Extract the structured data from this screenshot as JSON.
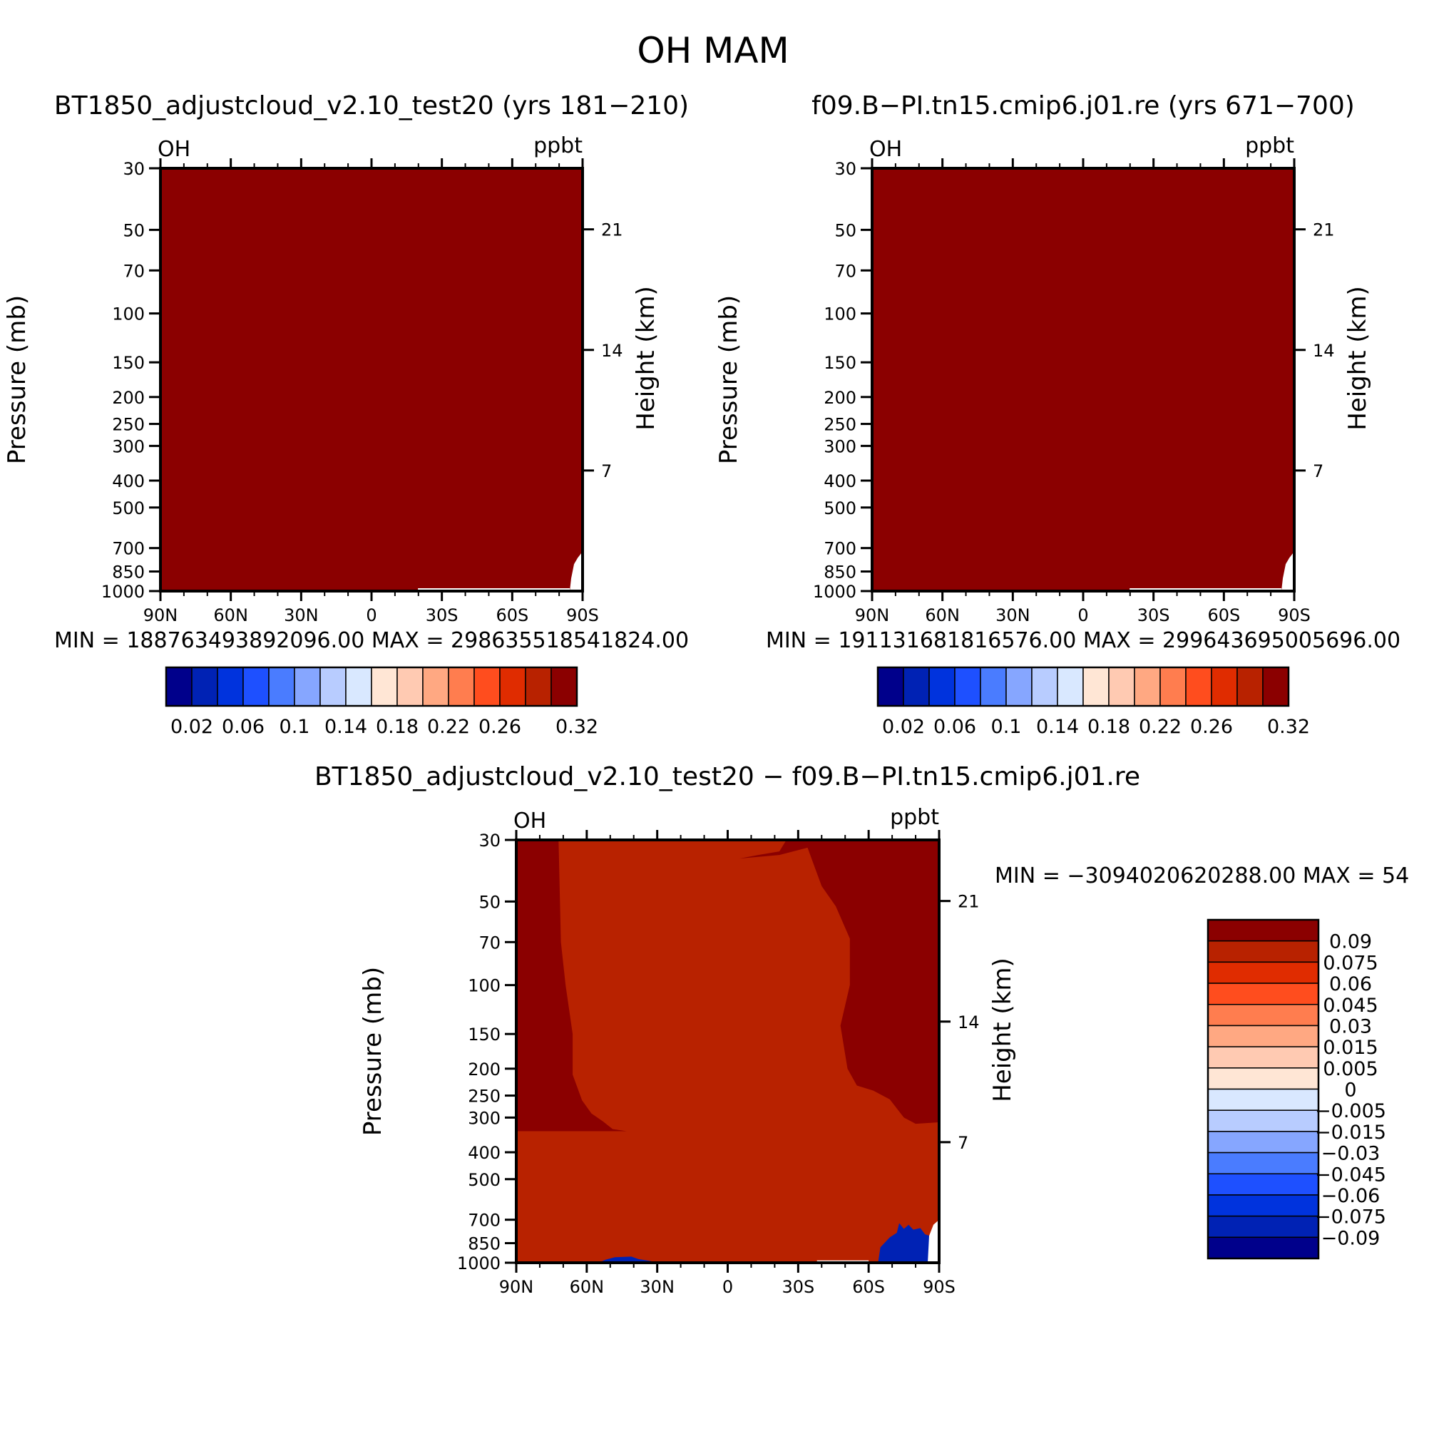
{
  "title": "OH  MAM",
  "colors": {
    "field_fill": "#8b0000",
    "diff_main": "#b82200",
    "diff_high": "#8b0000",
    "diff_neg": "#0022b4",
    "axis": "#000000"
  },
  "chart_data": [
    {
      "id": "panel-1",
      "type": "contour",
      "title": "BT1850_adjustcloud_v2.10_test20 (yrs 181−210)",
      "variable": "OH",
      "units": "ppbt",
      "xlabel": "",
      "ylabel": "Pressure (mb)",
      "ylabel_right": "Height (km)",
      "x_ticks": [
        "90N",
        "60N",
        "30N",
        "0",
        "30S",
        "60S",
        "90S"
      ],
      "x_tick_values": [
        90,
        60,
        30,
        0,
        -30,
        -60,
        -90
      ],
      "y_ticks": [
        30,
        50,
        70,
        100,
        150,
        200,
        250,
        300,
        400,
        500,
        700,
        850,
        1000
      ],
      "y_range": [
        30,
        1000
      ],
      "height_ticks": [
        21,
        14,
        7
      ],
      "stats": "MIN = 188763493892096.00   MAX = 298635518541824.00",
      "colorbar": {
        "orientation": "horizontal",
        "colors": [
          "#00008b",
          "#0022b4",
          "#0033dd",
          "#1e50ff",
          "#4a7cff",
          "#86a6ff",
          "#b8ccff",
          "#d9e8ff",
          "#ffe6d5",
          "#ffcab2",
          "#ffa882",
          "#ff7d4f",
          "#ff4d1e",
          "#e02c00",
          "#b82200",
          "#8b0000"
        ],
        "labels": [
          "0.02",
          "0.06",
          "0.1",
          "0.14",
          "0.18",
          "0.22",
          "0.26",
          "0.32"
        ]
      }
    },
    {
      "id": "panel-2",
      "type": "contour",
      "title": "f09.B−PI.tn15.cmip6.j01.re (yrs 671−700)",
      "variable": "OH",
      "units": "ppbt",
      "xlabel": "",
      "ylabel": "Pressure (mb)",
      "ylabel_right": "Height (km)",
      "x_ticks": [
        "90N",
        "60N",
        "30N",
        "0",
        "30S",
        "60S",
        "90S"
      ],
      "x_tick_values": [
        90,
        60,
        30,
        0,
        -30,
        -60,
        -90
      ],
      "y_ticks": [
        30,
        50,
        70,
        100,
        150,
        200,
        250,
        300,
        400,
        500,
        700,
        850,
        1000
      ],
      "y_range": [
        30,
        1000
      ],
      "height_ticks": [
        21,
        14,
        7
      ],
      "stats": "MIN = 191131681816576.00   MAX = 299643695005696.00",
      "colorbar": {
        "orientation": "horizontal",
        "colors": [
          "#00008b",
          "#0022b4",
          "#0033dd",
          "#1e50ff",
          "#4a7cff",
          "#86a6ff",
          "#b8ccff",
          "#d9e8ff",
          "#ffe6d5",
          "#ffcab2",
          "#ffa882",
          "#ff7d4f",
          "#ff4d1e",
          "#e02c00",
          "#b82200",
          "#8b0000"
        ],
        "labels": [
          "0.02",
          "0.06",
          "0.1",
          "0.14",
          "0.18",
          "0.22",
          "0.26",
          "0.32"
        ]
      }
    },
    {
      "id": "panel-3",
      "type": "contour",
      "title": "BT1850_adjustcloud_v2.10_test20 − f09.B−PI.tn15.cmip6.j01.re",
      "variable": "OH",
      "units": "ppbt",
      "xlabel": "",
      "ylabel": "Pressure (mb)",
      "ylabel_right": "Height (km)",
      "x_ticks": [
        "90N",
        "60N",
        "30N",
        "0",
        "30S",
        "60S",
        "90S"
      ],
      "x_tick_values": [
        90,
        60,
        30,
        0,
        -30,
        -60,
        -90
      ],
      "y_ticks": [
        30,
        50,
        70,
        100,
        150,
        200,
        250,
        300,
        400,
        500,
        700,
        850,
        1000
      ],
      "y_range": [
        30,
        1000
      ],
      "height_ticks": [
        21,
        14,
        7
      ],
      "stats": "MIN = −3094020620288.00   MAX = 54",
      "regions": [
        {
          "name": "northern-stratosphere",
          "level": 0.09,
          "lat_range": [
            90,
            70
          ],
          "p_range": [
            30,
            330
          ]
        },
        {
          "name": "southern-stratosphere",
          "level": 0.09,
          "lat_range": [
            -40,
            -90
          ],
          "p_range": [
            30,
            330
          ]
        },
        {
          "name": "negative-patch-60N",
          "level": -0.075,
          "lat_range": [
            55,
            35
          ],
          "p_range": [
            940,
            1000
          ]
        },
        {
          "name": "negative-patch-70S",
          "level": -0.075,
          "lat_range": [
            -65,
            -85
          ],
          "p_range": [
            720,
            1000
          ]
        }
      ],
      "colorbar": {
        "orientation": "vertical",
        "colors": [
          "#8b0000",
          "#b82200",
          "#e02c00",
          "#ff4d1e",
          "#ff7d4f",
          "#ffa882",
          "#ffcab2",
          "#ffe6d5",
          "#d9e8ff",
          "#b8ccff",
          "#86a6ff",
          "#4a7cff",
          "#1e50ff",
          "#0033dd",
          "#0022b4",
          "#00008b"
        ],
        "labels": [
          "0.09",
          "0.075",
          "0.06",
          "0.045",
          "0.03",
          "0.015",
          "0.005",
          "0",
          "−0.005",
          "−0.015",
          "−0.03",
          "−0.045",
          "−0.06",
          "−0.075",
          "−0.09"
        ]
      }
    }
  ]
}
